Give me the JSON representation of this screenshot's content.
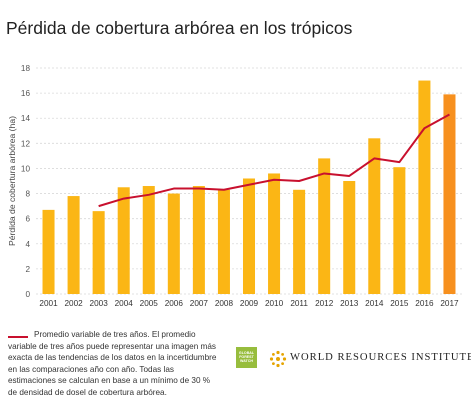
{
  "title": "Pérdida de cobertura arbórea en los trópicos",
  "legend": {
    "text": "Promedio variable de tres años. El promedio variable de tres años puede representar una imagen más exacta de las tendencias de los datos en la incertidumbre en las comparaciones año con año. Todas las estimaciones se calculan en base a un mínimo de 30 % de densidad de dosel de cobertura arbórea."
  },
  "logos": {
    "gfw": "GLOBAL FOREST WATCH",
    "wri": "WORLD RESOURCES INSTITUTE"
  },
  "colors": {
    "bar": "#fbb615",
    "bar_highlight": "#f7901e",
    "line": "#c8102e",
    "grid": "#d9d9d9"
  },
  "chart_data": {
    "type": "bar",
    "title": "Pérdida de cobertura arbórea en los trópicos",
    "ylabel": "Pérdida de cobertura arbórea (ha)",
    "xlabel": "",
    "ylim": [
      0,
      18
    ],
    "yticks": [
      0,
      2,
      4,
      6,
      8,
      10,
      12,
      14,
      16,
      18
    ],
    "grid": true,
    "categories": [
      "2001",
      "2002",
      "2003",
      "2004",
      "2005",
      "2006",
      "2007",
      "2008",
      "2009",
      "2010",
      "2011",
      "2012",
      "2013",
      "2014",
      "2015",
      "2016",
      "2017"
    ],
    "series": [
      {
        "type": "bar",
        "values": [
          6.7,
          7.8,
          6.6,
          8.5,
          8.6,
          8.0,
          8.6,
          8.3,
          9.2,
          9.6,
          8.3,
          10.8,
          9.0,
          12.4,
          10.1,
          17.0,
          15.9
        ]
      },
      {
        "type": "line",
        "name": "Promedio variable de tres años",
        "values": [
          null,
          null,
          7.0,
          7.6,
          7.9,
          8.4,
          8.4,
          8.3,
          8.7,
          9.1,
          9.0,
          9.6,
          9.4,
          10.8,
          10.5,
          13.2,
          14.3
        ]
      }
    ],
    "highlight_category": "2017"
  }
}
